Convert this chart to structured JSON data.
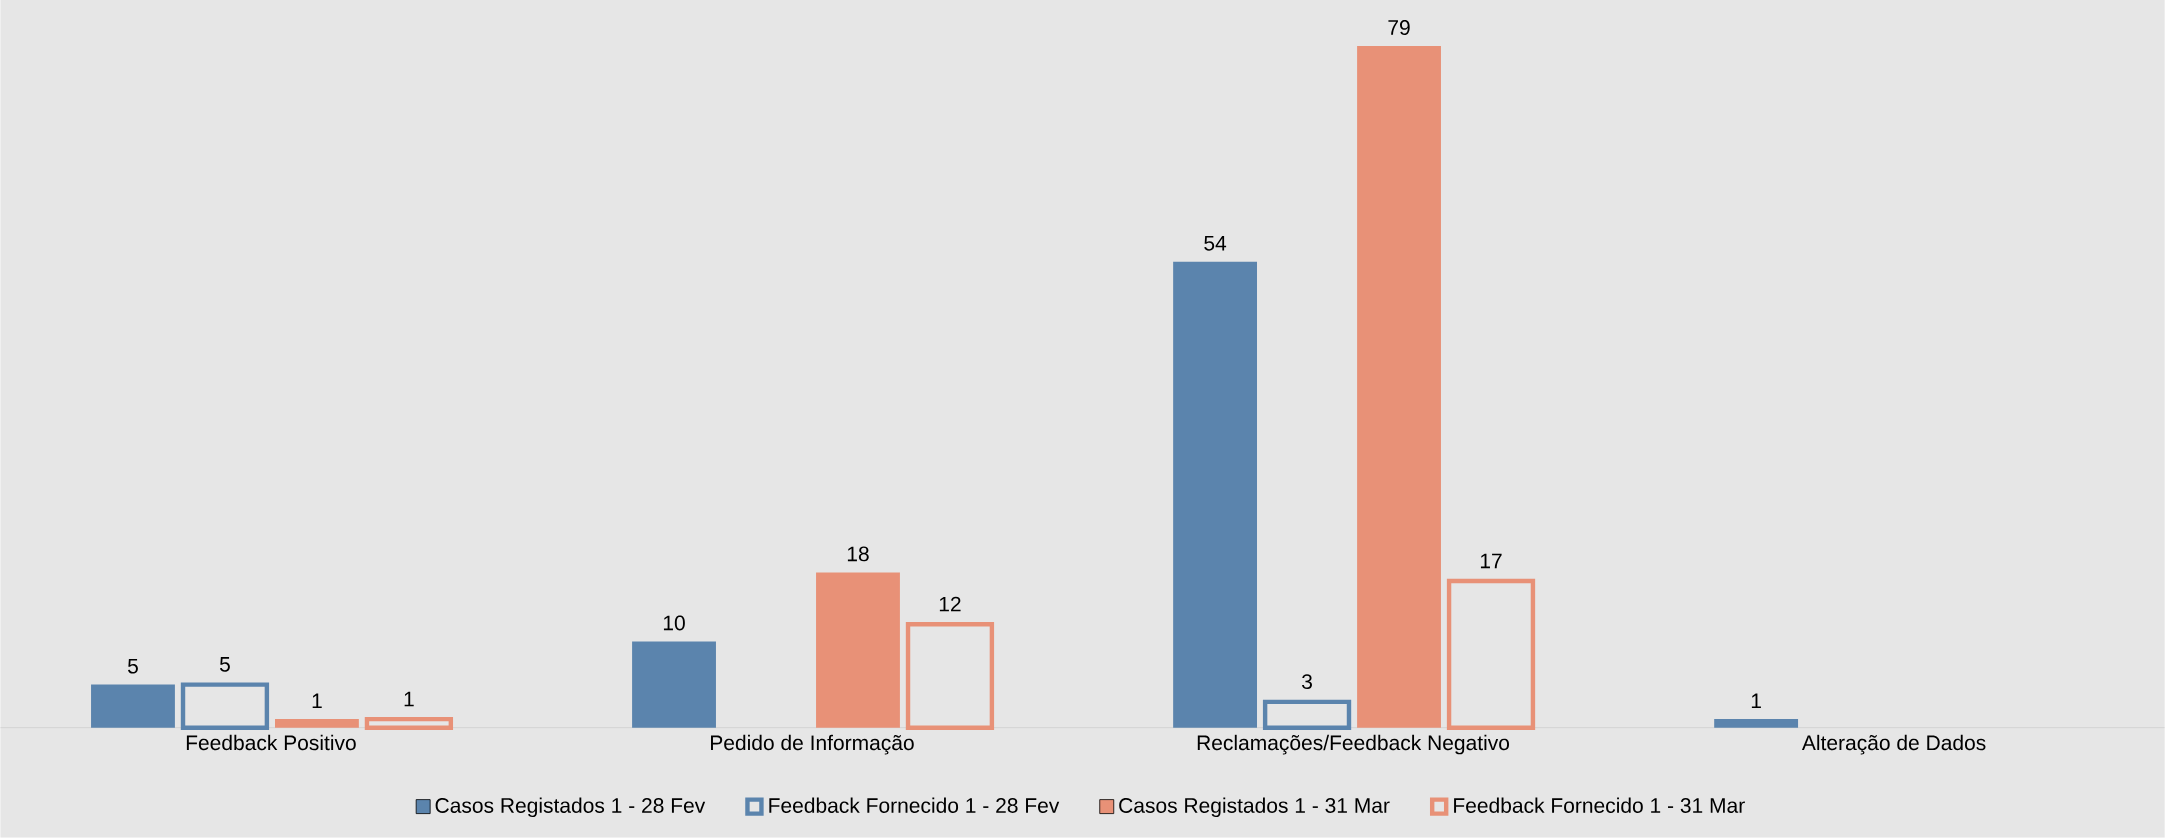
{
  "chart_data": {
    "type": "bar",
    "categories": [
      "Feedback Positivo",
      "Pedido de Informação",
      "Reclamações/Feedback Negativo",
      "Alteração de Dados"
    ],
    "series": [
      {
        "name": "Casos Registados 1 - 28 Fev",
        "color": "#5b84ad",
        "values": [
          5,
          10,
          54,
          1
        ]
      },
      {
        "name": "Feedback Fornecido 1 - 28 Fev",
        "color": "#5b84ad",
        "values": [
          5,
          null,
          3,
          null
        ]
      },
      {
        "name": "Casos Registados 1 - 31 Mar",
        "color": "#e89177",
        "values": [
          1,
          18,
          79,
          null
        ]
      },
      {
        "name": "Feedback Fornecido 1 - 31 Mar",
        "color": "#e89177",
        "values": [
          1,
          12,
          17,
          null
        ]
      }
    ],
    "data_labels": true,
    "legend": "bottom"
  }
}
